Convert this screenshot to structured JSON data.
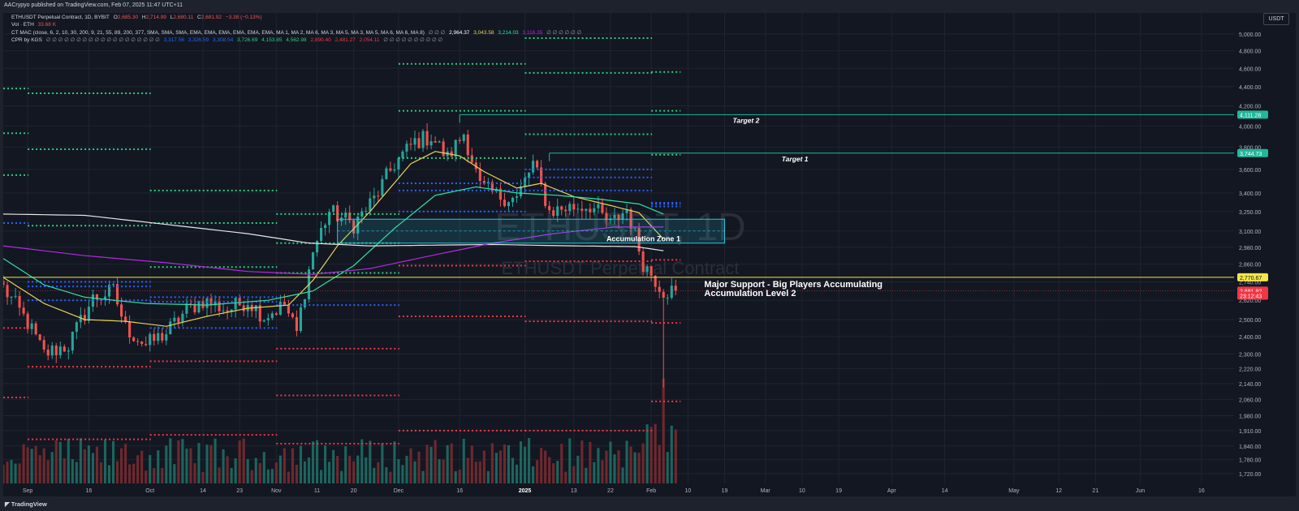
{
  "publisher": "AACrypyo published on TradingView.com, Feb 07, 2025 11:47 UTC+11",
  "header": {
    "symbol": "ETHUSDT Perpetual Contract, 1D, BYBIT",
    "o_label": "O",
    "o": "2,685.30",
    "h_label": "H",
    "h": "2,714.99",
    "l_label": "L",
    "l": "2,680.11",
    "c_label": "C",
    "c": "2,681.92",
    "change": "−3.38 (−0.13%)",
    "vol_label": "Vol · ETH",
    "vol": "33.68 K",
    "mac_label": "CT MAC (close, 6, 2, 10, 30, 200, 9, 21, 55, 89, 200, 377, SMA, SMA, SMA, EMA, EMA, EMA, EMA, EMA, EMA, MA 1, MA 2, MA 6, MA 3, MA 5, MA 3, MA 5, MA 6, MA 6, MA 8)",
    "mac_values": [
      "∅ ∅ ∅",
      "2,964.37",
      "3,043.58",
      "3,214.03",
      "3,116.35",
      "∅ ∅ ∅ ∅ ∅ ∅"
    ],
    "cpr_label": "CPR by KGS",
    "cpr_values": [
      "∅ ∅ ∅ ∅ ∅ ∅ ∅ ∅ ∅ ∅ ∅ ∅ ∅ ∅ ∅ ∅ ∅ ∅ ∅",
      "3,317.56",
      "3,326.59",
      "3,308.54",
      "3,726.69",
      "4,153.85",
      "4,562.98",
      "2,890.40",
      "2,481.27",
      "2,054.11",
      "∅ ∅ ∅ ∅ ∅ ∅ ∅ ∅ ∅ ∅"
    ]
  },
  "currency": "USDT",
  "footer": {
    "logo": "TradingView"
  },
  "colors": {
    "bg": "#131722",
    "up": "#26a69a",
    "down": "#ef5350",
    "grid": "#1f2430",
    "green_dots": "#26d07c",
    "blue_dots": "#2962ff",
    "red_dots": "#f23645",
    "ma_yellow": "#e8d15a",
    "ma_teal": "#2ee3a0",
    "ma_white": "#e6e6e6",
    "ma_purple": "#b22ae0",
    "support": "#f5e64a",
    "target": "#1fb89a"
  },
  "chart_data": {
    "type": "candlestick",
    "title": "ETHUSDT Perpetual Contract, 1D, BYBIT",
    "watermark": [
      "ETHUSDT, 1D",
      "ETHUSDT Perpetual Contract"
    ],
    "y_scale": "log",
    "ylim": [
      1680,
      5200
    ],
    "y_ticks": [
      "5,000.00",
      "4,800.00",
      "4,600.00",
      "4,400.00",
      "4,200.00",
      "4,000.00",
      "3,800.00",
      "3,600.00",
      "3,400.00",
      "3,250.00",
      "3,100.00",
      "2,980.00",
      "2,860.00",
      "2,740.00",
      "2,620.00",
      "2,500.00",
      "2,400.00",
      "2,300.00",
      "2,220.00",
      "2,140.00",
      "2,060.00",
      "1,980.00",
      "1,910.00",
      "1,840.00",
      "1,780.00",
      "1,720.00"
    ],
    "x_start": "2024-08-26",
    "x_end": "2025-06-24",
    "x_ticks": [
      {
        "date": "2024-09-01",
        "label": "Sep",
        "bold": false
      },
      {
        "date": "2024-09-16",
        "label": "16",
        "bold": false
      },
      {
        "date": "2024-10-01",
        "label": "Oct",
        "bold": false
      },
      {
        "date": "2024-10-14",
        "label": "14",
        "bold": false
      },
      {
        "date": "2024-10-23",
        "label": "23",
        "bold": false
      },
      {
        "date": "2024-11-01",
        "label": "Nov",
        "bold": false
      },
      {
        "date": "2024-11-11",
        "label": "11",
        "bold": false
      },
      {
        "date": "2024-11-20",
        "label": "20",
        "bold": false
      },
      {
        "date": "2024-12-01",
        "label": "Dec",
        "bold": false
      },
      {
        "date": "2024-12-16",
        "label": "16",
        "bold": false
      },
      {
        "date": "2025-01-01",
        "label": "2025",
        "bold": true
      },
      {
        "date": "2025-01-13",
        "label": "13",
        "bold": false
      },
      {
        "date": "2025-01-22",
        "label": "22",
        "bold": false
      },
      {
        "date": "2025-02-01",
        "label": "Feb",
        "bold": false
      },
      {
        "date": "2025-02-10",
        "label": "10",
        "bold": false
      },
      {
        "date": "2025-02-19",
        "label": "19",
        "bold": false
      },
      {
        "date": "2025-03-01",
        "label": "Mar",
        "bold": false
      },
      {
        "date": "2025-03-10",
        "label": "10",
        "bold": false
      },
      {
        "date": "2025-03-19",
        "label": "19",
        "bold": false
      },
      {
        "date": "2025-04-01",
        "label": "Apr",
        "bold": false
      },
      {
        "date": "2025-04-14",
        "label": "14",
        "bold": false
      },
      {
        "date": "2025-05-01",
        "label": "May",
        "bold": false
      },
      {
        "date": "2025-05-12",
        "label": "12",
        "bold": false
      },
      {
        "date": "2025-05-21",
        "label": "21",
        "bold": false
      },
      {
        "date": "2025-06-01",
        "label": "Jun",
        "bold": false
      },
      {
        "date": "2025-06-16",
        "label": "16",
        "bold": false
      }
    ],
    "price_tags": [
      {
        "value": 4111.28,
        "label": "4,111.28",
        "color": "#1fb89a"
      },
      {
        "value": 3744.73,
        "label": "3,744.73",
        "color": "#1fb89a"
      },
      {
        "value": 2770.67,
        "label": "2,770.67",
        "color": "#f5e64a"
      },
      {
        "value": 2681.92,
        "label": "2,681.92",
        "color": "#f23645"
      },
      {
        "value": 2650,
        "label": "23:12:43",
        "color": "#f23645"
      }
    ],
    "annotations": {
      "target_2": {
        "label": "Target 2",
        "price": 4111.28,
        "start": "2024-12-16"
      },
      "target_1": {
        "label": "Target 1",
        "price": 3744.73,
        "start": "2025-01-07"
      },
      "support": {
        "label1": "Major Support - Big Players Accumulating",
        "label2": "Accumulation Level 2",
        "price": 2770.67
      },
      "zone": {
        "label": "Accumulation Zone 1",
        "start": "2024-11-16",
        "end": "2025-02-19",
        "low": 3010,
        "high": 3190
      }
    },
    "candles_anchor": {
      "start": "2024-08-26",
      "end": "2025-02-07"
    },
    "close_anchors": [
      [
        0,
        2700
      ],
      [
        6,
        2480
      ],
      [
        10,
        2300
      ],
      [
        16,
        2350
      ],
      [
        22,
        2630
      ],
      [
        27,
        2680
      ],
      [
        30,
        2450
      ],
      [
        35,
        2350
      ],
      [
        40,
        2420
      ],
      [
        45,
        2560
      ],
      [
        49,
        2620
      ],
      [
        55,
        2560
      ],
      [
        60,
        2620
      ],
      [
        64,
        2520
      ],
      [
        69,
        2590
      ],
      [
        72,
        2420
      ],
      [
        76,
        2950
      ],
      [
        80,
        3250
      ],
      [
        86,
        3150
      ],
      [
        91,
        3350
      ],
      [
        96,
        3650
      ],
      [
        101,
        3850
      ],
      [
        105,
        3900
      ],
      [
        109,
        3700
      ],
      [
        113,
        3930
      ],
      [
        117,
        3450
      ],
      [
        121,
        3380
      ],
      [
        126,
        3350
      ],
      [
        130,
        3650
      ],
      [
        134,
        3250
      ],
      [
        138,
        3280
      ],
      [
        144,
        3300
      ],
      [
        149,
        3150
      ],
      [
        153,
        3270
      ],
      [
        157,
        2870
      ],
      [
        162,
        2681.92
      ]
    ],
    "mas": [
      {
        "name": "",
        "color": "#e8d15a",
        "anchors": [
          [
            0,
            2770
          ],
          [
            10,
            2600
          ],
          [
            20,
            2500
          ],
          [
            30,
            2490
          ],
          [
            40,
            2460
          ],
          [
            50,
            2520
          ],
          [
            60,
            2570
          ],
          [
            70,
            2590
          ],
          [
            76,
            2750
          ],
          [
            82,
            2990
          ],
          [
            90,
            3250
          ],
          [
            100,
            3650
          ],
          [
            106,
            3760
          ],
          [
            112,
            3720
          ],
          [
            118,
            3580
          ],
          [
            126,
            3440
          ],
          [
            132,
            3480
          ],
          [
            140,
            3370
          ],
          [
            150,
            3290
          ],
          [
            156,
            3240
          ],
          [
            162,
            3040
          ]
        ]
      },
      {
        "name": "",
        "color": "#2ee3a0",
        "anchors": [
          [
            0,
            2900
          ],
          [
            10,
            2720
          ],
          [
            20,
            2640
          ],
          [
            35,
            2600
          ],
          [
            50,
            2590
          ],
          [
            65,
            2620
          ],
          [
            76,
            2680
          ],
          [
            86,
            2850
          ],
          [
            96,
            3120
          ],
          [
            106,
            3380
          ],
          [
            116,
            3450
          ],
          [
            126,
            3400
          ],
          [
            136,
            3380
          ],
          [
            146,
            3350
          ],
          [
            156,
            3310
          ],
          [
            162,
            3230
          ]
        ]
      },
      {
        "name": "",
        "color": "#e6e6e6",
        "anchors": [
          [
            0,
            3230
          ],
          [
            20,
            3220
          ],
          [
            40,
            3150
          ],
          [
            60,
            3080
          ],
          [
            75,
            3010
          ],
          [
            90,
            2990
          ],
          [
            105,
            2995
          ],
          [
            120,
            3000
          ],
          [
            140,
            2990
          ],
          [
            155,
            2985
          ],
          [
            162,
            2955
          ]
        ]
      },
      {
        "name": "",
        "color": "#b22ae0",
        "anchors": [
          [
            0,
            2990
          ],
          [
            20,
            2920
          ],
          [
            40,
            2870
          ],
          [
            60,
            2810
          ],
          [
            76,
            2790
          ],
          [
            90,
            2830
          ],
          [
            105,
            2920
          ],
          [
            120,
            3010
          ],
          [
            135,
            3080
          ],
          [
            150,
            3130
          ],
          [
            162,
            3130
          ]
        ]
      }
    ],
    "cpr_levels": [
      {
        "color": "#26d07c",
        "start": "2024-08-26",
        "end": "2024-08-31",
        "value": 4380
      },
      {
        "color": "#26d07c",
        "start": "2024-08-26",
        "end": "2024-08-31",
        "value": 3930
      },
      {
        "color": "#26d07c",
        "start": "2024-08-26",
        "end": "2024-08-31",
        "value": 3550
      },
      {
        "color": "#2962ff",
        "start": "2024-08-26",
        "end": "2024-08-31",
        "value": 3160
      },
      {
        "color": "#2962ff",
        "start": "2024-08-26",
        "end": "2024-08-31",
        "value": 3160
      },
      {
        "color": "#26d07c",
        "start": "2024-09-01",
        "end": "2024-09-30",
        "value": 4330
      },
      {
        "color": "#26d07c",
        "start": "2024-09-01",
        "end": "2024-09-30",
        "value": 3780
      },
      {
        "color": "#26d07c",
        "start": "2024-09-01",
        "end": "2024-09-30",
        "value": 3140
      },
      {
        "color": "#2962ff",
        "start": "2024-09-01",
        "end": "2024-09-30",
        "value": 2740
      },
      {
        "color": "#2962ff",
        "start": "2024-09-01",
        "end": "2024-09-30",
        "value": 2710
      },
      {
        "color": "#2962ff",
        "start": "2024-09-01",
        "end": "2024-09-30",
        "value": 2620
      },
      {
        "color": "#f23645",
        "start": "2024-08-26",
        "end": "2024-08-31",
        "value": 2450
      },
      {
        "color": "#f23645",
        "start": "2024-08-26",
        "end": "2024-08-31",
        "value": 2070
      },
      {
        "color": "#f23645",
        "start": "2024-09-01",
        "end": "2024-09-30",
        "value": 2230
      },
      {
        "color": "#f23645",
        "start": "2024-09-01",
        "end": "2024-09-30",
        "value": 1870
      },
      {
        "color": "#26d07c",
        "start": "2024-10-01",
        "end": "2024-10-31",
        "value": 3420
      },
      {
        "color": "#26d07c",
        "start": "2024-10-01",
        "end": "2024-10-31",
        "value": 3160
      },
      {
        "color": "#26d07c",
        "start": "2024-10-01",
        "end": "2024-10-31",
        "value": 2840
      },
      {
        "color": "#2962ff",
        "start": "2024-10-01",
        "end": "2024-10-31",
        "value": 2640
      },
      {
        "color": "#2962ff",
        "start": "2024-10-01",
        "end": "2024-10-31",
        "value": 2610
      },
      {
        "color": "#2962ff",
        "start": "2024-10-01",
        "end": "2024-10-31",
        "value": 2450
      },
      {
        "color": "#f23645",
        "start": "2024-10-01",
        "end": "2024-10-31",
        "value": 2260
      },
      {
        "color": "#f23645",
        "start": "2024-10-01",
        "end": "2024-10-31",
        "value": 1890
      },
      {
        "color": "#26d07c",
        "start": "2024-11-01",
        "end": "2024-11-30",
        "value": 3230
      },
      {
        "color": "#26d07c",
        "start": "2024-11-01",
        "end": "2024-11-30",
        "value": 3010
      },
      {
        "color": "#26d07c",
        "start": "2024-11-01",
        "end": "2024-11-30",
        "value": 2800
      },
      {
        "color": "#2962ff",
        "start": "2024-11-01",
        "end": "2024-11-30",
        "value": 2590
      },
      {
        "color": "#f23645",
        "start": "2024-11-01",
        "end": "2024-11-30",
        "value": 2330
      },
      {
        "color": "#f23645",
        "start": "2024-11-01",
        "end": "2024-11-30",
        "value": 2080
      },
      {
        "color": "#f23645",
        "start": "2024-11-01",
        "end": "2024-11-30",
        "value": 1850
      },
      {
        "color": "#26d07c",
        "start": "2024-12-01",
        "end": "2024-12-31",
        "value": 4650
      },
      {
        "color": "#26d07c",
        "start": "2024-12-01",
        "end": "2024-12-31",
        "value": 4150
      },
      {
        "color": "#26d07c",
        "start": "2024-12-01",
        "end": "2024-12-31",
        "value": 3700
      },
      {
        "color": "#2962ff",
        "start": "2024-12-01",
        "end": "2024-12-31",
        "value": 3480
      },
      {
        "color": "#2962ff",
        "start": "2024-12-01",
        "end": "2024-12-31",
        "value": 3420
      },
      {
        "color": "#2962ff",
        "start": "2024-12-01",
        "end": "2024-12-31",
        "value": 3250
      },
      {
        "color": "#f23645",
        "start": "2024-12-01",
        "end": "2024-12-31",
        "value": 2850
      },
      {
        "color": "#f23645",
        "start": "2024-12-01",
        "end": "2024-12-31",
        "value": 2520
      },
      {
        "color": "#f23645",
        "start": "2024-12-01",
        "end": "2024-12-31",
        "value": 1910
      },
      {
        "color": "#26d07c",
        "start": "2025-01-01",
        "end": "2025-01-31",
        "value": 4950
      },
      {
        "color": "#26d07c",
        "start": "2025-01-01",
        "end": "2025-01-31",
        "value": 4550
      },
      {
        "color": "#26d07c",
        "start": "2025-01-01",
        "end": "2025-01-31",
        "value": 3920
      },
      {
        "color": "#2962ff",
        "start": "2025-01-01",
        "end": "2025-01-31",
        "value": 3600
      },
      {
        "color": "#2962ff",
        "start": "2025-01-01",
        "end": "2025-01-31",
        "value": 3530
      },
      {
        "color": "#2962ff",
        "start": "2025-01-01",
        "end": "2025-01-31",
        "value": 3420
      },
      {
        "color": "#f23645",
        "start": "2025-01-01",
        "end": "2025-01-31",
        "value": 2880
      },
      {
        "color": "#f23645",
        "start": "2025-01-01",
        "end": "2025-01-31",
        "value": 2490
      },
      {
        "color": "#f23645",
        "start": "2025-01-01",
        "end": "2025-01-31",
        "value": 1910
      },
      {
        "color": "#26d07c",
        "start": "2025-02-01",
        "end": "2025-02-07",
        "value": 4560
      },
      {
        "color": "#26d07c",
        "start": "2025-02-01",
        "end": "2025-02-07",
        "value": 4150
      },
      {
        "color": "#26d07c",
        "start": "2025-02-01",
        "end": "2025-02-07",
        "value": 3730
      },
      {
        "color": "#2962ff",
        "start": "2025-02-01",
        "end": "2025-02-07",
        "value": 3320
      },
      {
        "color": "#2962ff",
        "start": "2025-02-01",
        "end": "2025-02-07",
        "value": 3310
      },
      {
        "color": "#2962ff",
        "start": "2025-02-01",
        "end": "2025-02-07",
        "value": 3290
      },
      {
        "color": "#f23645",
        "start": "2025-02-01",
        "end": "2025-02-07",
        "value": 2890
      },
      {
        "color": "#f23645",
        "start": "2025-02-01",
        "end": "2025-02-07",
        "value": 2480
      },
      {
        "color": "#f23645",
        "start": "2025-02-01",
        "end": "2025-02-07",
        "value": 2050
      }
    ]
  }
}
